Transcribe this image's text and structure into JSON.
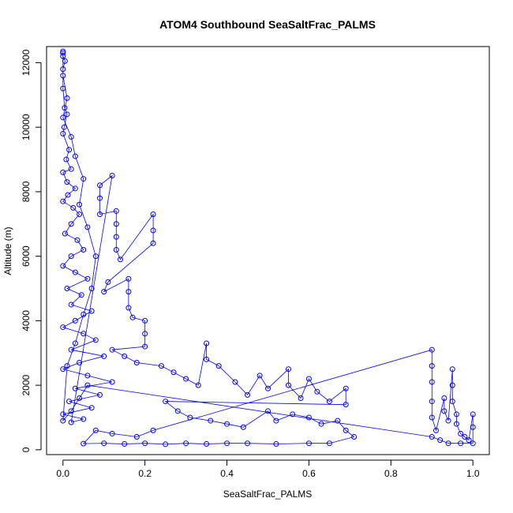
{
  "chart_data": {
    "type": "scatter",
    "title": "ATOM4 Southbound SeaSaltFrac_PALMS",
    "xlabel": "SeaSaltFrac_PALMS",
    "ylabel": "Altitude (m)",
    "xlim": [
      -0.04,
      1.04
    ],
    "ylim": [
      -150,
      12500
    ],
    "xticks": [
      0.0,
      0.2,
      0.4,
      0.6,
      0.8,
      1.0
    ],
    "xtick_labels": [
      "0.0",
      "0.2",
      "0.4",
      "0.6",
      "0.8",
      "1.0"
    ],
    "yticks": [
      0,
      2000,
      4000,
      6000,
      8000,
      10000,
      12000
    ],
    "ytick_labels": [
      "0",
      "2000",
      "4000",
      "6000",
      "8000",
      "10000",
      "12000"
    ],
    "grid": false,
    "legend": "none",
    "series": [
      {
        "color": "#0000ff",
        "marker": "open-circle",
        "connected": true,
        "points": [
          [
            0.0,
            12350
          ],
          [
            0.0,
            12200
          ],
          [
            0.005,
            12050
          ],
          [
            0.0,
            11800
          ],
          [
            0.0,
            11200
          ],
          [
            0.004,
            10600
          ],
          [
            0.01,
            10400
          ],
          [
            0.003,
            10000
          ],
          [
            0.0,
            9800
          ],
          [
            0.015,
            9300
          ],
          [
            0.008,
            9000
          ],
          [
            0.02,
            8700
          ],
          [
            0.0,
            8600
          ],
          [
            0.01,
            8300
          ],
          [
            0.03,
            8100
          ],
          [
            0.012,
            7900
          ],
          [
            0.0,
            7700
          ],
          [
            0.025,
            7500
          ],
          [
            0.04,
            7300
          ],
          [
            0.02,
            7000
          ],
          [
            0.005,
            6700
          ],
          [
            0.035,
            6500
          ],
          [
            0.05,
            6200
          ],
          [
            0.02,
            6000
          ],
          [
            0.0,
            5700
          ],
          [
            0.03,
            5500
          ],
          [
            0.06,
            5300
          ],
          [
            0.01,
            5000
          ],
          [
            0.045,
            4800
          ],
          [
            0.02,
            4500
          ],
          [
            0.07,
            4300
          ],
          [
            0.03,
            4000
          ],
          [
            0.0,
            3800
          ],
          [
            0.05,
            3600
          ],
          [
            0.08,
            3400
          ],
          [
            0.02,
            3100
          ],
          [
            0.1,
            2900
          ],
          [
            0.04,
            2700
          ],
          [
            0.0,
            2500
          ],
          [
            0.06,
            2300
          ],
          [
            0.12,
            2100
          ],
          [
            0.03,
            1900
          ],
          [
            0.09,
            1700
          ],
          [
            0.015,
            1500
          ],
          [
            0.07,
            1300
          ],
          [
            0.0,
            1100
          ],
          [
            0.05,
            950
          ],
          [
            0.02,
            850
          ],
          [
            0.12,
            8500
          ],
          [
            0.09,
            8200
          ],
          [
            0.09,
            7800
          ],
          [
            0.09,
            7300
          ],
          [
            0.13,
            7400
          ],
          [
            0.13,
            7000
          ],
          [
            0.13,
            6600
          ],
          [
            0.13,
            6200
          ],
          [
            0.14,
            5900
          ],
          [
            0.22,
            7300
          ],
          [
            0.22,
            6800
          ],
          [
            0.22,
            6400
          ],
          [
            0.11,
            5200
          ],
          [
            0.1,
            4900
          ],
          [
            0.16,
            5300
          ],
          [
            0.16,
            4900
          ],
          [
            0.16,
            4400
          ],
          [
            0.17,
            4100
          ],
          [
            0.2,
            4000
          ],
          [
            0.2,
            3600
          ],
          [
            0.2,
            3200
          ],
          [
            0.12,
            3100
          ],
          [
            0.15,
            2900
          ],
          [
            0.18,
            2700
          ],
          [
            0.24,
            2600
          ],
          [
            0.27,
            2400
          ],
          [
            0.3,
            2200
          ],
          [
            0.33,
            2000
          ],
          [
            0.35,
            3300
          ],
          [
            0.35,
            2800
          ],
          [
            0.38,
            2600
          ],
          [
            0.42,
            2100
          ],
          [
            0.45,
            1700
          ],
          [
            0.48,
            2300
          ],
          [
            0.5,
            1900
          ],
          [
            0.55,
            2500
          ],
          [
            0.55,
            2000
          ],
          [
            0.58,
            1600
          ],
          [
            0.6,
            2200
          ],
          [
            0.62,
            1800
          ],
          [
            0.65,
            1500
          ],
          [
            0.69,
            1900
          ],
          [
            0.69,
            1400
          ],
          [
            0.25,
            1500
          ],
          [
            0.28,
            1200
          ],
          [
            0.31,
            1000
          ],
          [
            0.36,
            900
          ],
          [
            0.4,
            800
          ],
          [
            0.44,
            700
          ],
          [
            0.5,
            1200
          ],
          [
            0.52,
            900
          ],
          [
            0.56,
            1100
          ],
          [
            0.6,
            1000
          ],
          [
            0.63,
            800
          ],
          [
            0.67,
            900
          ],
          [
            0.69,
            600
          ],
          [
            0.71,
            400
          ],
          [
            0.65,
            200
          ],
          [
            0.6,
            200
          ],
          [
            0.52,
            180
          ],
          [
            0.45,
            200
          ],
          [
            0.4,
            200
          ],
          [
            0.35,
            180
          ],
          [
            0.3,
            200
          ],
          [
            0.25,
            170
          ],
          [
            0.2,
            200
          ],
          [
            0.15,
            180
          ],
          [
            0.1,
            200
          ],
          [
            0.05,
            190
          ],
          [
            0.08,
            600
          ],
          [
            0.12,
            500
          ],
          [
            0.18,
            400
          ],
          [
            0.22,
            600
          ],
          [
            0.9,
            3100
          ],
          [
            0.9,
            2600
          ],
          [
            0.9,
            2100
          ],
          [
            0.9,
            1500
          ],
          [
            0.9,
            1000
          ],
          [
            0.91,
            600
          ],
          [
            0.93,
            1600
          ],
          [
            0.93,
            1200
          ],
          [
            0.94,
            900
          ],
          [
            0.95,
            2500
          ],
          [
            0.95,
            2000
          ],
          [
            0.95,
            1500
          ],
          [
            0.96,
            1100
          ],
          [
            0.96,
            800
          ],
          [
            0.97,
            500
          ],
          [
            0.98,
            400
          ],
          [
            0.99,
            300
          ],
          [
            1.0,
            1100
          ],
          [
            1.0,
            700
          ],
          [
            1.0,
            200
          ],
          [
            0.97,
            200
          ],
          [
            0.94,
            200
          ],
          [
            0.92,
            300
          ],
          [
            0.9,
            400
          ],
          [
            0.06,
            2000
          ],
          [
            0.04,
            1600
          ],
          [
            0.02,
            1200
          ],
          [
            0.0,
            900
          ],
          [
            0.01,
            2600
          ],
          [
            0.03,
            3300
          ],
          [
            0.05,
            4200
          ],
          [
            0.07,
            5000
          ],
          [
            0.08,
            6000
          ],
          [
            0.06,
            6900
          ],
          [
            0.04,
            7600
          ],
          [
            0.05,
            8400
          ],
          [
            0.03,
            9100
          ],
          [
            0.02,
            9700
          ],
          [
            0.0,
            10300
          ],
          [
            0.01,
            10900
          ],
          [
            0.0,
            11600
          ],
          [
            0.0,
            12300
          ]
        ]
      }
    ]
  }
}
